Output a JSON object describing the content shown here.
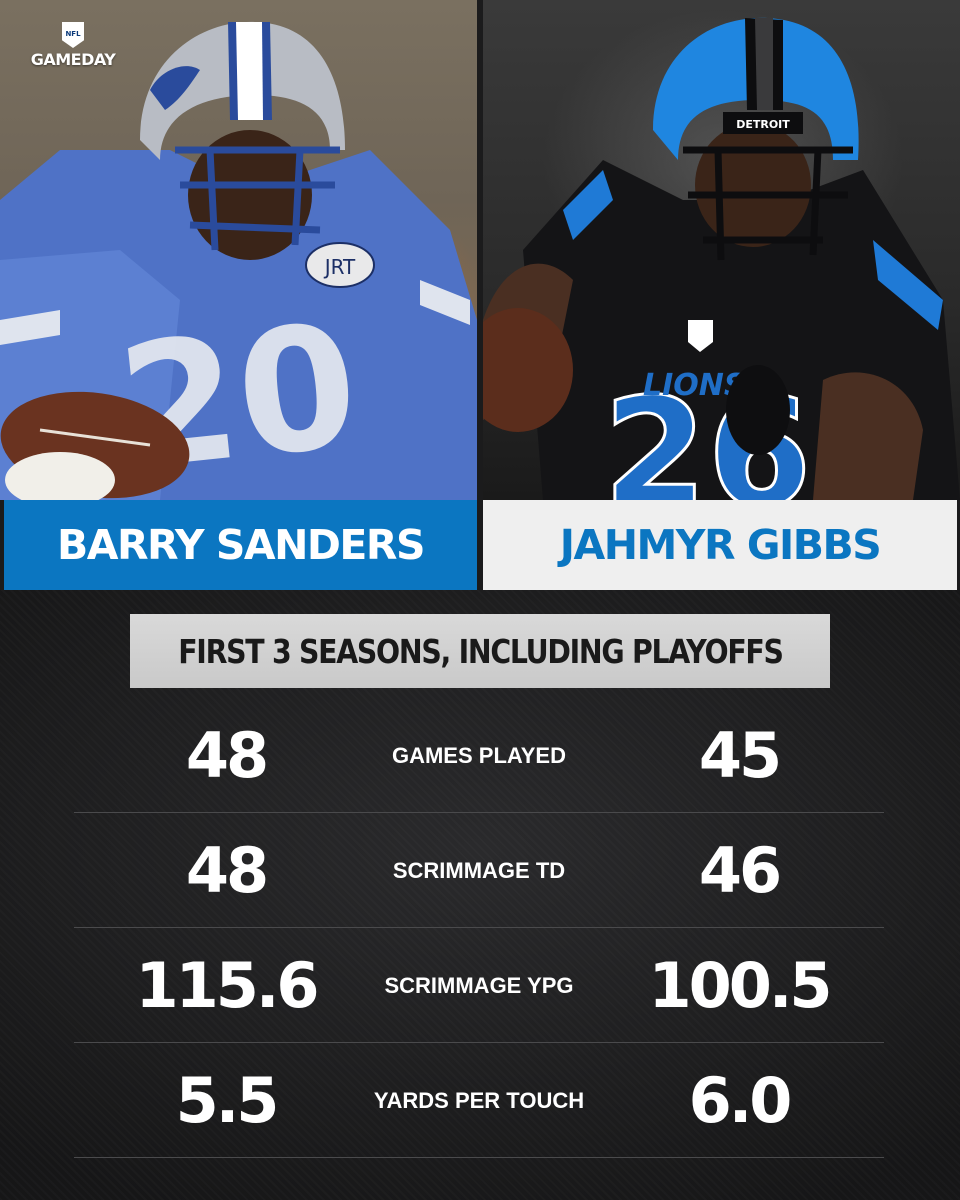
{
  "brand": {
    "shield_text": "NFL",
    "wordmark": "GAMEDAY"
  },
  "players": {
    "left": {
      "name": "BARRY SANDERS",
      "jersey_number": "20",
      "helmet_text": "JRT"
    },
    "right": {
      "name": "JAHMYR GIBBS",
      "jersey_number": "26",
      "helmet_text": "DETROIT"
    }
  },
  "heading": "FIRST 3 SEASONS, INCLUDING PLAYOFFS",
  "stats": [
    {
      "label": "GAMES PLAYED",
      "left": "48",
      "right": "45"
    },
    {
      "label": "SCRIMMAGE TD",
      "left": "48",
      "right": "46"
    },
    {
      "label": "SCRIMMAGE YPG",
      "left": "115.6",
      "right": "100.5"
    },
    {
      "label": "YARDS PER TOUCH",
      "left": "5.5",
      "right": "6.0"
    }
  ],
  "colors": {
    "lions_blue": "#0b76c1",
    "silver": "#efefef",
    "background": "#1b1b1c",
    "heading_box": "#d2d2d2"
  }
}
